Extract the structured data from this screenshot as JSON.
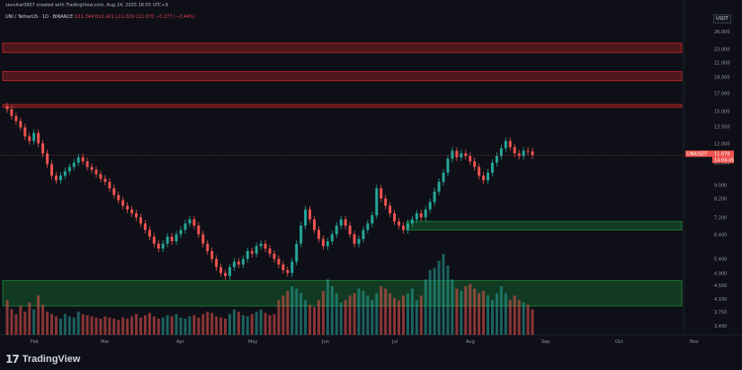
{
  "header": {
    "info": "sevvitar0907 created with TradingView.com, Aug 24, 2025 18:55 UTC+9",
    "symbol": "UNI / TetherUS · 1D · BINANCE",
    "ohlc": "O11.349 H11.421 L11.029 C11.070 −0.277 (−2.44%)"
  },
  "currency": "USDT",
  "price_tag": {
    "symbol": "UNIUSDT",
    "price": "11.070",
    "countdown": "14:04:45"
  },
  "logo": {
    "mark": "17",
    "name": "TradingView"
  },
  "colors": {
    "up": "#26a69a",
    "down": "#ef5350",
    "resistance": "#c62828",
    "support": "#1b8a3a",
    "background": "#0f1017"
  },
  "chart_data": {
    "type": "candlestick",
    "y_scale": "log",
    "y_ticks": [
      "26.000",
      "23.000",
      "21.000",
      "19.000",
      "17.000",
      "15.000",
      "13.500",
      "12.000",
      "10.500",
      "9.000",
      "8.200",
      "7.200",
      "6.400",
      "5.400",
      "4.900",
      "4.500",
      "4.100",
      "3.750",
      "3.400"
    ],
    "x_ticks": [
      "Feb",
      "Mar",
      "Apr",
      "May",
      "Jun",
      "Jul",
      "Aug",
      "Sep",
      "Oct",
      "Nov"
    ],
    "zones": [
      {
        "kind": "resistance",
        "from": 22.5,
        "to": 24.0
      },
      {
        "kind": "resistance",
        "from": 18.5,
        "to": 19.7
      },
      {
        "kind": "resistance",
        "from": 15.4,
        "to": 15.7
      },
      {
        "kind": "support",
        "from": 6.6,
        "to": 7.0
      },
      {
        "kind": "support",
        "from": 3.9,
        "to": 4.65
      }
    ],
    "series_close": [
      15.2,
      14.5,
      14.0,
      13.4,
      12.6,
      12.2,
      12.9,
      12.0,
      11.2,
      10.4,
      9.6,
      9.3,
      9.6,
      9.9,
      10.2,
      10.5,
      10.9,
      10.6,
      10.2,
      10.0,
      9.7,
      9.4,
      9.2,
      8.8,
      8.4,
      8.1,
      7.8,
      7.6,
      7.4,
      7.2,
      6.9,
      6.6,
      6.3,
      6.0,
      5.8,
      6.0,
      6.3,
      6.1,
      6.4,
      6.6,
      6.9,
      7.1,
      6.8,
      6.4,
      6.0,
      5.7,
      5.4,
      5.1,
      4.9,
      4.8,
      5.1,
      5.3,
      5.2,
      5.4,
      5.7,
      5.6,
      5.9,
      6.0,
      5.8,
      5.6,
      5.4,
      5.2,
      5.0,
      4.9,
      5.3,
      6.0,
      6.8,
      7.6,
      7.1,
      6.6,
      6.2,
      5.9,
      6.1,
      6.4,
      6.8,
      7.1,
      6.8,
      6.4,
      6.0,
      6.2,
      6.6,
      6.9,
      7.3,
      8.8,
      8.2,
      7.8,
      7.4,
      7.0,
      6.8,
      6.6,
      6.9,
      7.1,
      7.4,
      7.2,
      7.6,
      8.0,
      8.6,
      9.2,
      9.8,
      10.8,
      11.4,
      10.9,
      11.2,
      11.0,
      10.6,
      10.2,
      9.6,
      9.3,
      9.8,
      10.5,
      11.0,
      11.6,
      12.2,
      11.7,
      11.2,
      11.0,
      11.4,
      11.35,
      11.07
    ],
    "volume": [
      30,
      22,
      18,
      25,
      20,
      28,
      22,
      34,
      26,
      20,
      18,
      16,
      14,
      18,
      16,
      15,
      20,
      18,
      17,
      16,
      15,
      14,
      16,
      15,
      14,
      13,
      15,
      14,
      16,
      18,
      15,
      17,
      19,
      16,
      14,
      15,
      17,
      16,
      18,
      15,
      14,
      16,
      17,
      15,
      18,
      20,
      19,
      16,
      15,
      14,
      18,
      22,
      20,
      17,
      16,
      18,
      20,
      22,
      19,
      17,
      18,
      30,
      34,
      38,
      42,
      40,
      36,
      30,
      26,
      24,
      30,
      38,
      48,
      42,
      36,
      28,
      30,
      34,
      36,
      40,
      38,
      34,
      30,
      36,
      42,
      40,
      36,
      32,
      30,
      34,
      36,
      40,
      30,
      34,
      48,
      56,
      58,
      64,
      70,
      60,
      48,
      40,
      38,
      42,
      44,
      40,
      36,
      38,
      34,
      30,
      36,
      42,
      36,
      30,
      34,
      30,
      28,
      26,
      22
    ]
  }
}
